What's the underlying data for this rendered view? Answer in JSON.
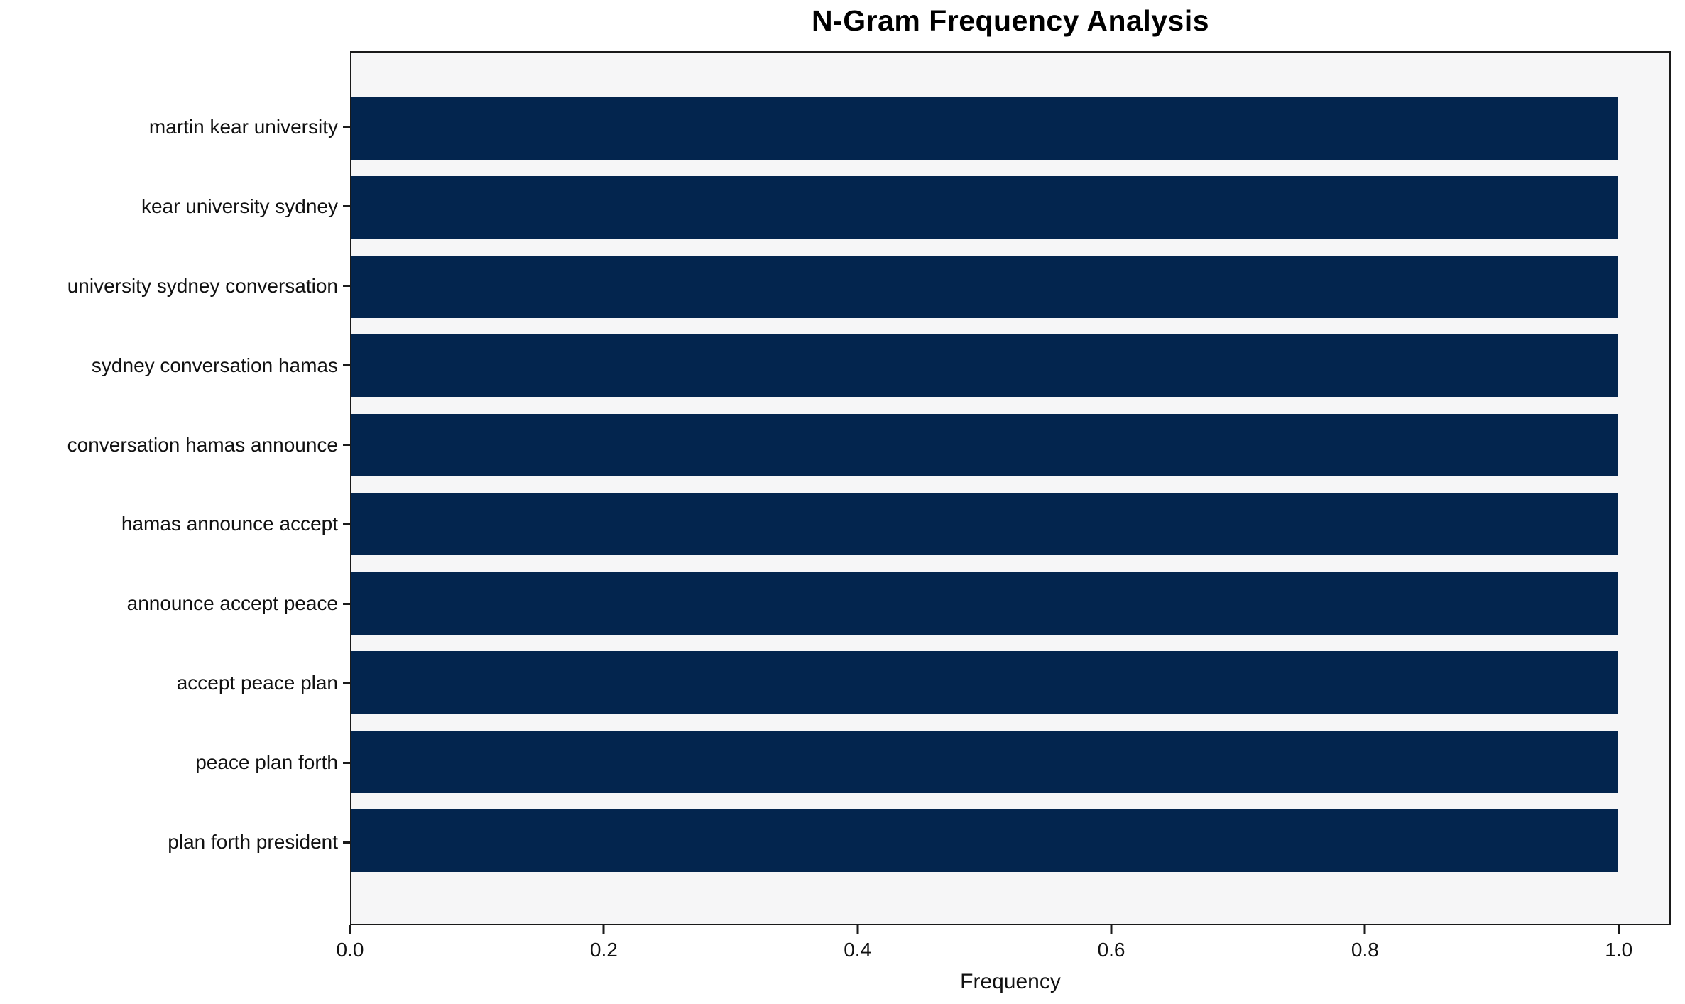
{
  "title": "N-Gram Frequency Analysis",
  "colors": {
    "bar": "#03254e",
    "plot_bg": "#f6f6f7",
    "figure_bg": "#ffffff",
    "spine": "#1a1a1a",
    "text": "#111111"
  },
  "chart_data": {
    "type": "bar",
    "orientation": "horizontal",
    "title": "N-Gram Frequency Analysis",
    "categories": [
      "martin kear university",
      "kear university sydney",
      "university sydney conversation",
      "sydney conversation hamas",
      "conversation hamas announce",
      "hamas announce accept",
      "announce accept peace",
      "accept peace plan",
      "peace plan forth",
      "plan forth president"
    ],
    "values": [
      1.0,
      1.0,
      1.0,
      1.0,
      1.0,
      1.0,
      1.0,
      1.0,
      1.0,
      1.0
    ],
    "xlabel": "Frequency",
    "ylabel": "",
    "xlim": [
      0,
      1.041
    ],
    "x_ticks": [
      0.0,
      0.2,
      0.4,
      0.6,
      0.8,
      1.0
    ],
    "x_tick_labels": [
      "0.0",
      "0.2",
      "0.4",
      "0.6",
      "0.8",
      "1.0"
    ],
    "grid": false,
    "legend": null,
    "bar_band_fraction": 0.8
  }
}
